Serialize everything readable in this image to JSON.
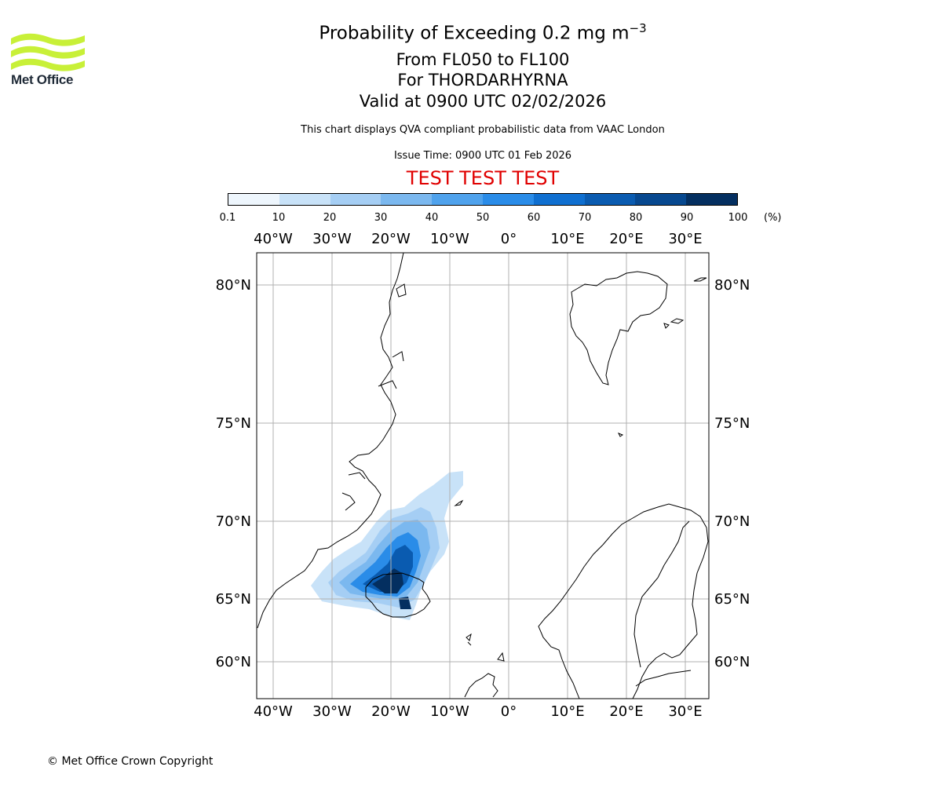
{
  "logo": {
    "text": "Met Office",
    "icon": "met-office-wave-logo",
    "color": "#c8f038"
  },
  "header": {
    "title_prefix": "Probability of Exceeding 0.2 mg m",
    "title_exponent": "−3",
    "level_range": "From FL050 to FL100",
    "volcano": "For THORDARHYRNA",
    "valid_time": "Valid at 0900 UTC 02/02/2026",
    "subtitle": "This chart displays QVA compliant probabilistic data from VAAC London",
    "issue_time": "Issue Time: 0900 UTC 01 Feb 2026",
    "test_banner": "TEST TEST TEST",
    "test_color": "#e00000"
  },
  "colorbar": {
    "ticks": [
      "0.1",
      "10",
      "20",
      "30",
      "40",
      "50",
      "60",
      "70",
      "80",
      "90",
      "100"
    ],
    "unit": "(%)",
    "colors": [
      "#eef6fd",
      "#c8e2f8",
      "#a5cef4",
      "#7bb8ef",
      "#4fa2ec",
      "#2a8ce8",
      "#0f6fd0",
      "#0a5bb0",
      "#07488f",
      "#042f60"
    ]
  },
  "map": {
    "longitude_labels": [
      "40°W",
      "30°W",
      "20°W",
      "10°W",
      "0°",
      "10°E",
      "20°E",
      "30°E"
    ],
    "latitude_labels": [
      "80°N",
      "75°N",
      "70°N",
      "65°N",
      "60°N"
    ],
    "gridline_color": "#b0b0b0",
    "coastline_color": "#000000"
  },
  "footer": {
    "copyright": "© Met Office Crown Copyright"
  }
}
